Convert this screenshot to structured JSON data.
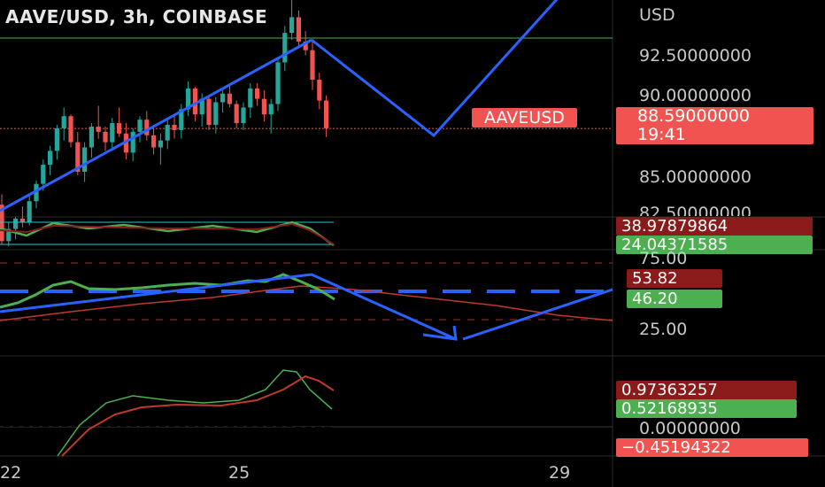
{
  "header": {
    "title": "AAVE/USD, 3h, COINBASE"
  },
  "price_axis": {
    "currency": "USD",
    "ticks": [
      "92.50000000",
      "90.00000000",
      "85.00000000",
      "82.50000000"
    ],
    "last_price": "88.59000000",
    "countdown": "19:41",
    "symbol": "AAVEUSD"
  },
  "panes": {
    "stoch": {
      "values": [
        "38.97879864",
        "24.04371585"
      ],
      "colors": [
        "#8b1a1a",
        "#4caf50"
      ]
    },
    "rsi": {
      "values": [
        "53.82",
        "46.20"
      ],
      "ticks": [
        "75.00",
        "25.00"
      ],
      "colors": [
        "#8b1a1a",
        "#4caf50"
      ]
    },
    "macd": {
      "values": [
        "0.97363257",
        "0.52168935",
        "0.00000000",
        "−0.45194322"
      ],
      "colors": [
        "#8b1a1a",
        "#4caf50",
        "#000000",
        "#f05350"
      ]
    }
  },
  "x_axis": {
    "labels": [
      "22",
      "25",
      "29"
    ]
  },
  "colors": {
    "up": "#26a69a",
    "down": "#f05350",
    "accent": "#2962ff",
    "green": "#4caf50",
    "maroon": "#8b1a1a"
  },
  "chart_data": {
    "type": "candlestick",
    "title": "AAVE/USD, 3h, COINBASE",
    "ylim": [
      81.8,
      97.3
    ],
    "candles": [
      [
        84.2,
        84.8,
        81.9,
        82.1
      ],
      [
        82.1,
        83.2,
        81.8,
        82.8
      ],
      [
        82.8,
        83.5,
        82.2,
        83.4
      ],
      [
        83.4,
        84.1,
        82.9,
        83.2
      ],
      [
        83.2,
        84.7,
        83.0,
        84.4
      ],
      [
        84.4,
        85.6,
        84.0,
        85.4
      ],
      [
        85.4,
        86.8,
        85.0,
        86.5
      ],
      [
        86.5,
        87.6,
        85.9,
        87.3
      ],
      [
        87.3,
        88.8,
        86.8,
        88.6
      ],
      [
        88.6,
        89.8,
        87.9,
        89.3
      ],
      [
        89.3,
        89.4,
        87.5,
        87.8
      ],
      [
        87.8,
        88.4,
        85.9,
        86.1
      ],
      [
        86.1,
        87.8,
        85.5,
        87.5
      ],
      [
        87.5,
        88.9,
        86.9,
        88.7
      ],
      [
        88.7,
        89.9,
        88.0,
        88.4
      ],
      [
        88.4,
        88.7,
        87.3,
        87.8
      ],
      [
        87.8,
        89.2,
        87.4,
        88.9
      ],
      [
        88.9,
        89.8,
        88.1,
        88.3
      ],
      [
        88.3,
        88.9,
        86.8,
        87.2
      ],
      [
        87.2,
        88.6,
        86.7,
        88.4
      ],
      [
        88.4,
        89.3,
        87.8,
        89.1
      ],
      [
        89.1,
        89.6,
        87.9,
        88.2
      ],
      [
        88.2,
        88.8,
        87.1,
        87.5
      ],
      [
        87.5,
        88.3,
        86.5,
        87.9
      ],
      [
        87.9,
        89.1,
        87.4,
        88.8
      ],
      [
        88.8,
        89.4,
        88.0,
        88.5
      ],
      [
        88.5,
        90.0,
        88.0,
        89.7
      ],
      [
        89.7,
        91.3,
        89.3,
        90.9
      ],
      [
        90.9,
        91.0,
        89.0,
        89.4
      ],
      [
        89.4,
        90.6,
        88.7,
        90.3
      ],
      [
        90.3,
        90.5,
        88.5,
        88.8
      ],
      [
        88.8,
        90.4,
        88.3,
        90.1
      ],
      [
        90.1,
        90.8,
        89.5,
        90.6
      ],
      [
        90.6,
        91.1,
        89.8,
        90.0
      ],
      [
        90.0,
        90.2,
        88.6,
        88.9
      ],
      [
        88.9,
        90.1,
        88.5,
        89.8
      ],
      [
        89.8,
        91.2,
        89.2,
        90.9
      ],
      [
        90.9,
        91.2,
        89.9,
        90.3
      ],
      [
        90.3,
        90.8,
        89.0,
        89.4
      ],
      [
        89.4,
        90.3,
        88.3,
        90.0
      ],
      [
        90.0,
        92.6,
        89.6,
        92.4
      ],
      [
        92.4,
        94.5,
        91.9,
        94.1
      ],
      [
        94.1,
        97.2,
        93.7,
        95.0
      ],
      [
        95.0,
        95.4,
        93.3,
        93.6
      ],
      [
        93.6,
        94.2,
        92.8,
        93.1
      ],
      [
        93.1,
        93.6,
        90.8,
        91.4
      ],
      [
        91.4,
        91.8,
        89.7,
        90.2
      ],
      [
        90.2,
        90.5,
        88.1,
        88.6
      ]
    ],
    "drawings": [
      "ascending trendline",
      "projected zigzag path"
    ],
    "horizontal_levels": [
      93.8,
      88.59
    ],
    "x_labels": [
      "22",
      "25",
      "29"
    ]
  }
}
